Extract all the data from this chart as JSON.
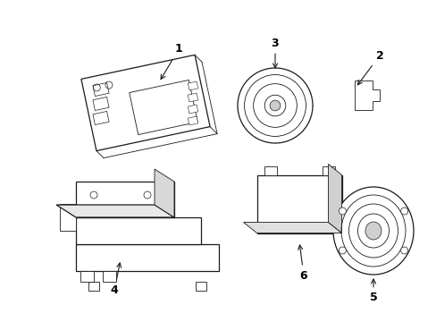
{
  "background_color": "#ffffff",
  "line_color": "#1a1a1a",
  "label_color": "#000000",
  "figsize": [
    4.89,
    3.6
  ],
  "dpi": 100,
  "lw_thin": 0.6,
  "lw_med": 0.9,
  "lw_thick": 1.2
}
